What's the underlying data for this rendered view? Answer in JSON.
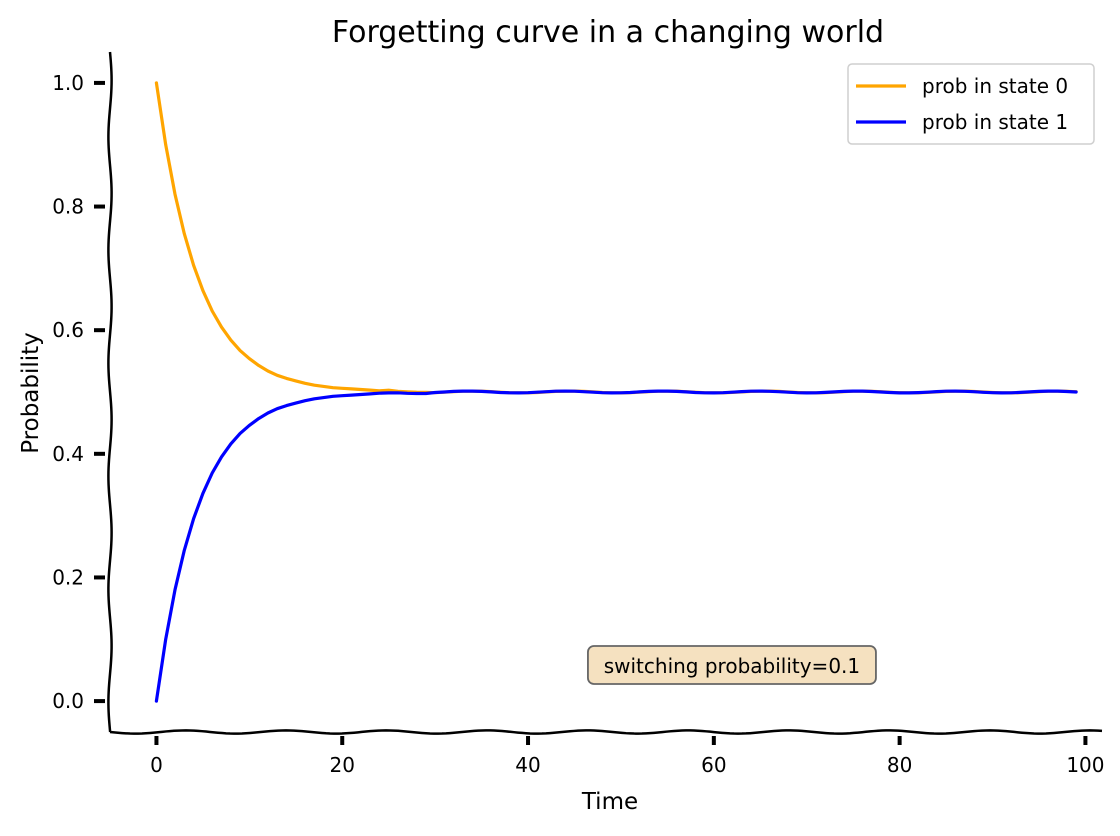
{
  "chart_data": {
    "type": "line",
    "title": "Forgetting curve in a changing world",
    "xlabel": "Time",
    "ylabel": "Probability",
    "xlim": [
      -5,
      102
    ],
    "ylim": [
      -0.05,
      1.05
    ],
    "xticks": [
      0,
      20,
      40,
      60,
      80,
      100
    ],
    "yticks": [
      0.0,
      0.2,
      0.4,
      0.6,
      0.8,
      1.0
    ],
    "xtick_labels": [
      "0",
      "20",
      "40",
      "60",
      "80",
      "100"
    ],
    "ytick_labels": [
      "0.0",
      "0.2",
      "0.4",
      "0.6",
      "0.8",
      "1.0"
    ],
    "grid": false,
    "legend_position": "top-right",
    "x": [
      0,
      1,
      2,
      3,
      4,
      5,
      6,
      7,
      8,
      9,
      10,
      11,
      12,
      13,
      14,
      15,
      16,
      17,
      18,
      19,
      20,
      21,
      22,
      23,
      24,
      25,
      26,
      27,
      28,
      29,
      30,
      31,
      32,
      33,
      34,
      35,
      36,
      37,
      38,
      39,
      40,
      41,
      42,
      43,
      44,
      45,
      46,
      47,
      48,
      49,
      50,
      51,
      52,
      53,
      54,
      55,
      56,
      57,
      58,
      59,
      60,
      61,
      62,
      63,
      64,
      65,
      66,
      67,
      68,
      69,
      70,
      71,
      72,
      73,
      74,
      75,
      76,
      77,
      78,
      79,
      80,
      81,
      82,
      83,
      84,
      85,
      86,
      87,
      88,
      89,
      90,
      91,
      92,
      93,
      94,
      95,
      96,
      97,
      98,
      99
    ],
    "series": [
      {
        "name": "prob in state 0",
        "color": "#FFA500",
        "values": [
          1.0,
          0.9,
          0.82,
          0.756,
          0.705,
          0.664,
          0.631,
          0.605,
          0.584,
          0.567,
          0.554,
          0.543,
          0.534,
          0.527,
          0.522,
          0.518,
          0.514,
          0.511,
          0.509,
          0.507,
          0.506,
          0.505,
          0.504,
          0.503,
          0.502,
          0.502,
          0.501,
          0.501,
          0.501,
          0.501,
          0.5,
          0.5,
          0.5,
          0.5,
          0.5,
          0.5,
          0.5,
          0.5,
          0.5,
          0.5,
          0.5,
          0.5,
          0.5,
          0.5,
          0.5,
          0.5,
          0.5,
          0.5,
          0.5,
          0.5,
          0.5,
          0.5,
          0.5,
          0.5,
          0.5,
          0.5,
          0.5,
          0.5,
          0.5,
          0.5,
          0.5,
          0.5,
          0.5,
          0.5,
          0.5,
          0.5,
          0.5,
          0.5,
          0.5,
          0.5,
          0.5,
          0.5,
          0.5,
          0.5,
          0.5,
          0.5,
          0.5,
          0.5,
          0.5,
          0.5,
          0.5,
          0.5,
          0.5,
          0.5,
          0.5,
          0.5,
          0.5,
          0.5,
          0.5,
          0.5,
          0.5,
          0.5,
          0.5,
          0.5,
          0.5,
          0.5,
          0.5,
          0.5,
          0.5,
          0.5
        ]
      },
      {
        "name": "prob in state 1",
        "color": "#0000FF",
        "values": [
          0.0,
          0.1,
          0.18,
          0.244,
          0.295,
          0.336,
          0.369,
          0.395,
          0.416,
          0.433,
          0.446,
          0.457,
          0.466,
          0.473,
          0.478,
          0.482,
          0.486,
          0.489,
          0.491,
          0.493,
          0.494,
          0.495,
          0.496,
          0.497,
          0.498,
          0.498,
          0.499,
          0.499,
          0.499,
          0.499,
          0.5,
          0.5,
          0.5,
          0.5,
          0.5,
          0.5,
          0.5,
          0.5,
          0.5,
          0.5,
          0.5,
          0.5,
          0.5,
          0.5,
          0.5,
          0.5,
          0.5,
          0.5,
          0.5,
          0.5,
          0.5,
          0.5,
          0.5,
          0.5,
          0.5,
          0.5,
          0.5,
          0.5,
          0.5,
          0.5,
          0.5,
          0.5,
          0.5,
          0.5,
          0.5,
          0.5,
          0.5,
          0.5,
          0.5,
          0.5,
          0.5,
          0.5,
          0.5,
          0.5,
          0.5,
          0.5,
          0.5,
          0.5,
          0.5,
          0.5,
          0.5,
          0.5,
          0.5,
          0.5,
          0.5,
          0.5,
          0.5,
          0.5,
          0.5,
          0.5,
          0.5,
          0.5,
          0.5,
          0.5,
          0.5,
          0.5,
          0.5,
          0.5,
          0.5,
          0.5
        ]
      }
    ],
    "annotations": [
      {
        "text": "switching probability=0.1",
        "x": 50,
        "y": 0.06,
        "box_color": "#F5E1C0"
      }
    ]
  }
}
